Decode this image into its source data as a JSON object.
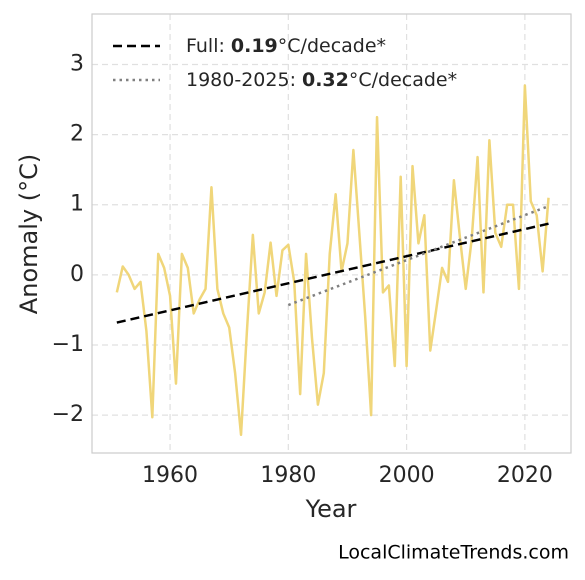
{
  "chart_data": {
    "type": "line",
    "xlabel": "Year",
    "ylabel": "Anomaly (°C)",
    "source": "LocalClimateTrends.com",
    "x": [
      1951,
      1952,
      1953,
      1954,
      1955,
      1956,
      1957,
      1958,
      1959,
      1960,
      1961,
      1962,
      1963,
      1964,
      1965,
      1966,
      1967,
      1968,
      1969,
      1970,
      1971,
      1972,
      1973,
      1974,
      1975,
      1976,
      1977,
      1978,
      1979,
      1980,
      1981,
      1982,
      1983,
      1984,
      1985,
      1986,
      1987,
      1988,
      1989,
      1990,
      1991,
      1992,
      1993,
      1994,
      1995,
      1996,
      1997,
      1998,
      1999,
      2000,
      2001,
      2002,
      2003,
      2004,
      2005,
      2006,
      2007,
      2008,
      2009,
      2010,
      2011,
      2012,
      2013,
      2014,
      2015,
      2016,
      2017,
      2018,
      2019,
      2020,
      2021,
      2022,
      2023,
      2024
    ],
    "series": [
      {
        "color": "#f0d67a",
        "values": [
          -0.25,
          0.12,
          0.0,
          -0.2,
          -0.1,
          -0.8,
          -2.03,
          0.3,
          0.1,
          -0.3,
          -1.55,
          0.3,
          0.1,
          -0.55,
          -0.35,
          -0.2,
          1.25,
          -0.2,
          -0.55,
          -0.75,
          -1.4,
          -2.28,
          -0.8,
          0.57,
          -0.55,
          -0.25,
          0.46,
          -0.3,
          0.35,
          0.43,
          -0.1,
          -1.7,
          0.3,
          -0.9,
          -1.85,
          -1.4,
          0.3,
          1.15,
          0.05,
          0.45,
          1.78,
          0.6,
          -0.6,
          -2.0,
          2.25,
          -0.25,
          -0.15,
          -1.3,
          1.4,
          -1.3,
          1.55,
          0.45,
          0.85,
          -1.08,
          -0.5,
          0.1,
          -0.1,
          1.35,
          0.55,
          -0.2,
          0.5,
          1.68,
          -0.25,
          1.92,
          0.6,
          0.4,
          1.0,
          1.0,
          -0.2,
          2.7,
          1.05,
          0.85,
          0.05,
          1.1
        ]
      }
    ],
    "trends": [
      {
        "name": "Full:",
        "slope": 0.19,
        "unit": "°C/decade*",
        "color": "#000000",
        "dash": "dashed",
        "x": [
          1951,
          2024
        ],
        "values": [
          -0.68,
          0.73
        ]
      },
      {
        "name": "1980-2025:",
        "slope": 0.32,
        "unit": "°C/decade*",
        "color": "#808080",
        "dash": "dotted",
        "x": [
          1980,
          2024
        ],
        "values": [
          -0.43,
          0.98
        ]
      }
    ],
    "xlim": [
      1946.8,
      2027.8
    ],
    "ylim": [
      -2.54,
      3.72
    ],
    "xticks": [
      1960,
      1980,
      2000,
      2020
    ],
    "yticks": [
      {
        "value": -2,
        "label": "−2"
      },
      {
        "value": -1,
        "label": "−1"
      },
      0,
      1,
      2,
      3
    ],
    "grid": true,
    "legend": "upper left"
  }
}
